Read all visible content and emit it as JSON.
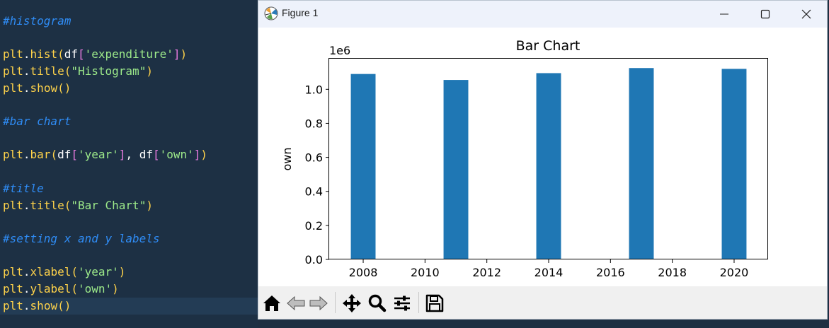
{
  "editor": {
    "lines": [
      {
        "y": 30,
        "tokens": [
          {
            "t": "#histogram",
            "c": "cm"
          }
        ]
      },
      {
        "y": 77,
        "tokens": [
          {
            "t": "plt",
            "c": "kw"
          },
          {
            "t": ".",
            "c": "pl"
          },
          {
            "t": "hist",
            "c": "kw"
          },
          {
            "t": "(",
            "c": "kw"
          },
          {
            "t": "df",
            "c": "pl"
          },
          {
            "t": "[",
            "c": "br"
          },
          {
            "t": "'expenditure'",
            "c": "st"
          },
          {
            "t": "]",
            "c": "br"
          },
          {
            "t": ")",
            "c": "kw"
          }
        ]
      },
      {
        "y": 101,
        "tokens": [
          {
            "t": "plt",
            "c": "kw"
          },
          {
            "t": ".",
            "c": "pl"
          },
          {
            "t": "title",
            "c": "kw"
          },
          {
            "t": "(",
            "c": "kw"
          },
          {
            "t": "\"Histogram\"",
            "c": "st"
          },
          {
            "t": ")",
            "c": "kw"
          }
        ]
      },
      {
        "y": 125,
        "tokens": [
          {
            "t": "plt",
            "c": "kw"
          },
          {
            "t": ".",
            "c": "pl"
          },
          {
            "t": "show",
            "c": "kw"
          },
          {
            "t": "()",
            "c": "kw"
          }
        ]
      },
      {
        "y": 172,
        "tokens": [
          {
            "t": "#bar chart",
            "c": "cm"
          }
        ]
      },
      {
        "y": 219,
        "tokens": [
          {
            "t": "plt",
            "c": "kw"
          },
          {
            "t": ".",
            "c": "pl"
          },
          {
            "t": "bar",
            "c": "kw"
          },
          {
            "t": "(",
            "c": "kw"
          },
          {
            "t": "df",
            "c": "pl"
          },
          {
            "t": "[",
            "c": "br"
          },
          {
            "t": "'year'",
            "c": "st"
          },
          {
            "t": "]",
            "c": "br"
          },
          {
            "t": ", ",
            "c": "pl"
          },
          {
            "t": "df",
            "c": "pl"
          },
          {
            "t": "[",
            "c": "br"
          },
          {
            "t": "'own'",
            "c": "st"
          },
          {
            "t": "]",
            "c": "br"
          },
          {
            "t": ")",
            "c": "kw"
          }
        ]
      },
      {
        "y": 267,
        "tokens": [
          {
            "t": "#title",
            "c": "cm"
          }
        ]
      },
      {
        "y": 291,
        "tokens": [
          {
            "t": "plt",
            "c": "kw"
          },
          {
            "t": ".",
            "c": "pl"
          },
          {
            "t": "title",
            "c": "kw"
          },
          {
            "t": "(",
            "c": "kw"
          },
          {
            "t": "\"Bar Chart\"",
            "c": "st"
          },
          {
            "t": ")",
            "c": "kw"
          }
        ]
      },
      {
        "y": 338,
        "tokens": [
          {
            "t": "#setting x and y labels",
            "c": "cm"
          }
        ]
      },
      {
        "y": 385,
        "tokens": [
          {
            "t": "plt",
            "c": "kw"
          },
          {
            "t": ".",
            "c": "pl"
          },
          {
            "t": "xlabel",
            "c": "kw"
          },
          {
            "t": "(",
            "c": "kw"
          },
          {
            "t": "'year'",
            "c": "st"
          },
          {
            "t": ")",
            "c": "kw"
          }
        ]
      },
      {
        "y": 409,
        "tokens": [
          {
            "t": "plt",
            "c": "kw"
          },
          {
            "t": ".",
            "c": "pl"
          },
          {
            "t": "ylabel",
            "c": "kw"
          },
          {
            "t": "(",
            "c": "kw"
          },
          {
            "t": "'own'",
            "c": "st"
          },
          {
            "t": ")",
            "c": "kw"
          }
        ]
      },
      {
        "y": 433,
        "current": true,
        "tokens": [
          {
            "t": "plt",
            "c": "kw"
          },
          {
            "t": ".",
            "c": "pl"
          },
          {
            "t": "show",
            "c": "kw"
          },
          {
            "t": "()",
            "c": "kw"
          }
        ]
      }
    ]
  },
  "window": {
    "title": "Figure 1",
    "icons": {
      "app": "matplotlib-icon",
      "minimize": "minimize-icon",
      "maximize": "maximize-icon",
      "close": "close-icon"
    }
  },
  "toolbar": {
    "buttons": [
      "home-icon",
      "back-icon",
      "forward-icon",
      "pan-icon",
      "zoom-icon",
      "configure-subplots-icon",
      "save-icon"
    ]
  },
  "chart_data": {
    "type": "bar",
    "title": "Bar Chart",
    "xlabel": "",
    "ylabel": "own",
    "offset_text": "1e6",
    "x": [
      2008,
      2011,
      2014,
      2017,
      2020
    ],
    "values": [
      1090000,
      1055000,
      1095000,
      1125000,
      1120000
    ],
    "bar_width": 0.8,
    "xlim": [
      2006.9,
      2021.1
    ],
    "ylim": [
      0,
      1180000
    ],
    "xticks": [
      2008,
      2010,
      2012,
      2014,
      2016,
      2018,
      2020
    ],
    "xtick_labels": [
      "2008",
      "2010",
      "2012",
      "2014",
      "2016",
      "2018",
      "2020"
    ],
    "yticks": [
      0,
      200000,
      400000,
      600000,
      800000,
      1000000
    ],
    "ytick_labels": [
      "0.0",
      "0.2",
      "0.4",
      "0.6",
      "0.8",
      "1.0"
    ],
    "color": "#1f77b4",
    "grid": false
  }
}
